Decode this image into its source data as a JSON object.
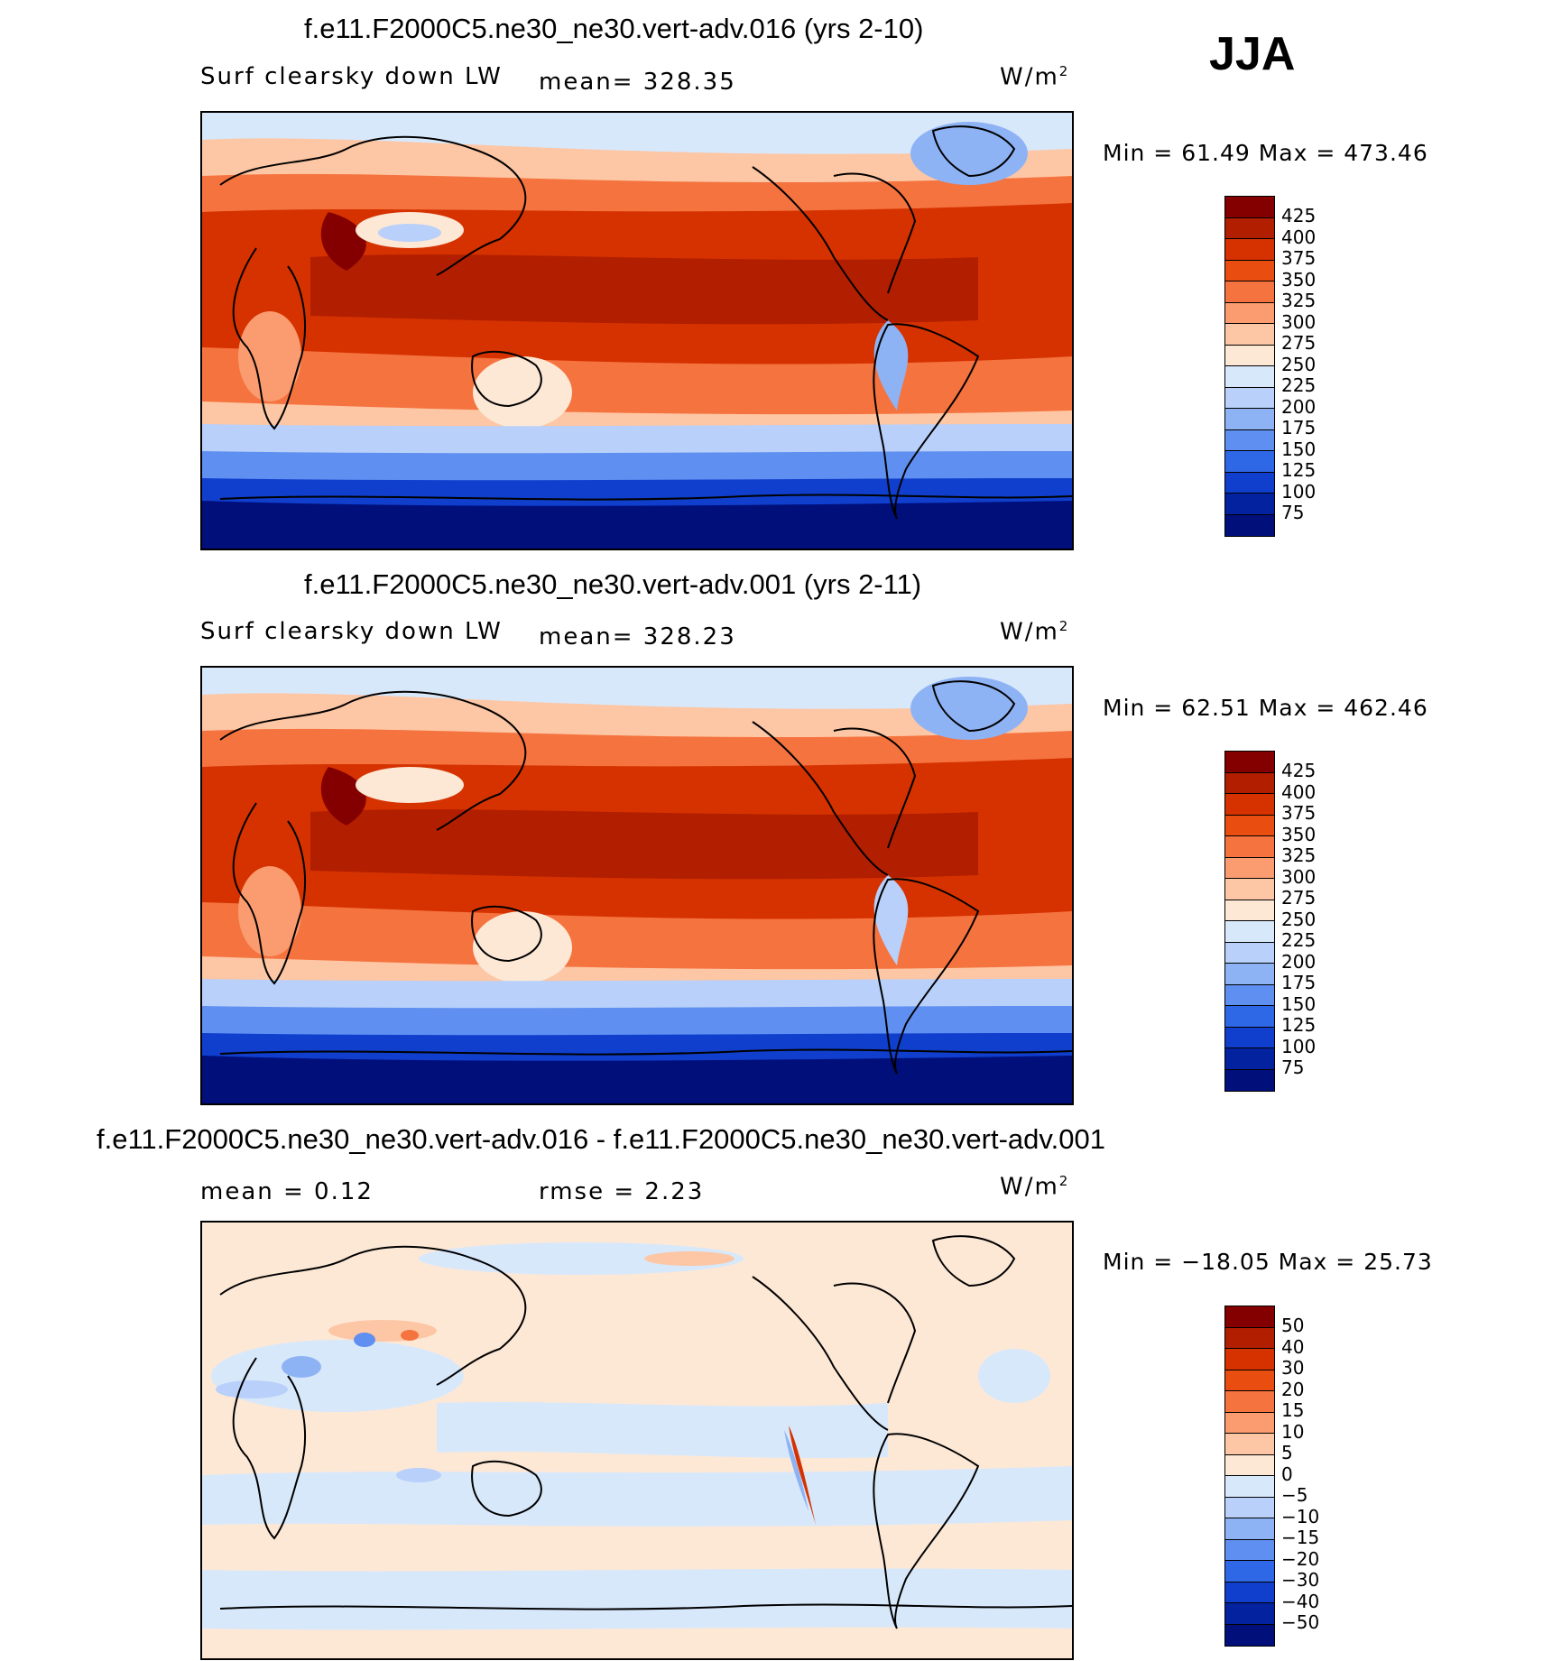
{
  "season": "JJA",
  "units": "W/m",
  "units_sup": "2",
  "panels": [
    {
      "title": "f.e11.F2000C5.ne30_ne30.vert-adv.016 (yrs 2-10)",
      "variable": "Surf clearsky down LW",
      "stat1": "mean= 328.35",
      "stat2": "",
      "minmax": "Min =   61.49  Max  =  473.46",
      "levels": [
        "425",
        "400",
        "375",
        "350",
        "325",
        "300",
        "275",
        "250",
        "225",
        "200",
        "175",
        "150",
        "125",
        "100",
        "75"
      ],
      "colors": [
        "#840000",
        "#b21e00",
        "#d53200",
        "#ea4d10",
        "#f5733f",
        "#fb9c70",
        "#fdc6a4",
        "#fde8d6",
        "#d8e8fb",
        "#b8d0fa",
        "#8eb3f5",
        "#5f8ff0",
        "#2f68e6",
        "#0f3fcc",
        "#03229f",
        "#000f7a"
      ]
    },
    {
      "title": "f.e11.F2000C5.ne30_ne30.vert-adv.001 (yrs 2-11)",
      "variable": "Surf clearsky down LW",
      "stat1": "mean= 328.23",
      "stat2": "",
      "minmax": "Min =   62.51  Max  =  462.46",
      "levels": [
        "425",
        "400",
        "375",
        "350",
        "325",
        "300",
        "275",
        "250",
        "225",
        "200",
        "175",
        "150",
        "125",
        "100",
        "75"
      ],
      "colors": [
        "#840000",
        "#b21e00",
        "#d53200",
        "#ea4d10",
        "#f5733f",
        "#fb9c70",
        "#fdc6a4",
        "#fde8d6",
        "#d8e8fb",
        "#b8d0fa",
        "#8eb3f5",
        "#5f8ff0",
        "#2f68e6",
        "#0f3fcc",
        "#03229f",
        "#000f7a"
      ]
    },
    {
      "title": "f.e11.F2000C5.ne30_ne30.vert-adv.016 - f.e11.F2000C5.ne30_ne30.vert-adv.001",
      "variable": "",
      "stat1": "mean =     0.12",
      "stat2": "rmse =     2.23",
      "minmax": "Min = −18.05  Max  =   25.73",
      "levels": [
        "50",
        "40",
        "30",
        "20",
        "15",
        "10",
        "5",
        "0",
        "−5",
        "−10",
        "−15",
        "−20",
        "−30",
        "−40",
        "−50"
      ],
      "colors": [
        "#840000",
        "#b21e00",
        "#d53200",
        "#ea4d10",
        "#f5733f",
        "#fb9c70",
        "#fdc6a4",
        "#fde8d6",
        "#d8e8fb",
        "#b8d0fa",
        "#8eb3f5",
        "#5f8ff0",
        "#2f68e6",
        "#0f3fcc",
        "#03229f",
        "#000f7a"
      ]
    }
  ]
}
